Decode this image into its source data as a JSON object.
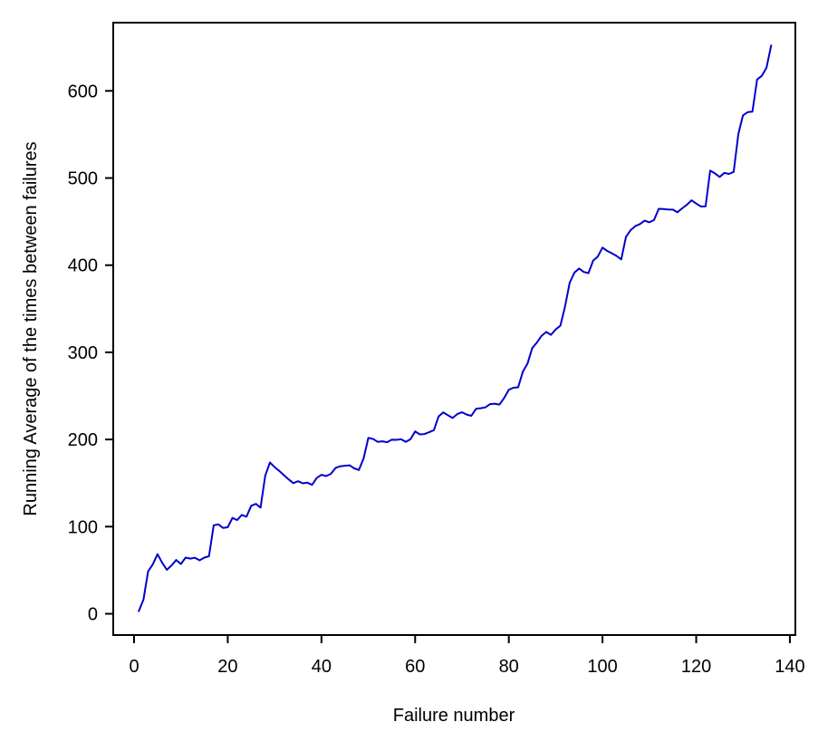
{
  "chart_data": {
    "type": "line",
    "title": "",
    "xlabel": "Failure number",
    "ylabel": "Running Average of the times between failures",
    "legend": null,
    "grid": false,
    "line_color": "#0000cd",
    "axis_color": "#000000",
    "x_ticks": [
      0,
      20,
      40,
      60,
      80,
      100,
      120,
      140
    ],
    "y_ticks": [
      0,
      100,
      200,
      300,
      400,
      500,
      600
    ],
    "xlim": [
      -4.45,
      141.17
    ],
    "ylim": [
      -24.4,
      678.3
    ],
    "series_name": "running-average-of-times-between-failures",
    "x": [
      1,
      2,
      3,
      4,
      5,
      6,
      7,
      8,
      9,
      10,
      11,
      12,
      13,
      14,
      15,
      16,
      17,
      18,
      19,
      20,
      21,
      22,
      23,
      24,
      25,
      26,
      27,
      28,
      29,
      30,
      31,
      32,
      33,
      34,
      35,
      36,
      37,
      38,
      39,
      40,
      41,
      42,
      43,
      44,
      45,
      46,
      47,
      48,
      49,
      50,
      51,
      52,
      53,
      54,
      55,
      56,
      57,
      58,
      59,
      60,
      61,
      62,
      63,
      64,
      65,
      66,
      67,
      68,
      69,
      70,
      71,
      72,
      73,
      74,
      75,
      76,
      77,
      78,
      79,
      80,
      81,
      82,
      83,
      84,
      85,
      86,
      87,
      88,
      89,
      90,
      91,
      92,
      93,
      94,
      95,
      96,
      97,
      98,
      99,
      100,
      101,
      102,
      103,
      104,
      105,
      106,
      107,
      108,
      109,
      110,
      111,
      112,
      113,
      114,
      115,
      116,
      117,
      118,
      119,
      120,
      121,
      122,
      123,
      124,
      125,
      126,
      127,
      128,
      129,
      130,
      131,
      132,
      133,
      134,
      135,
      136
    ],
    "values": [
      3.0,
      16.5,
      48.7,
      56.8,
      68.4,
      58.5,
      50.4,
      55.5,
      61.8,
      57.1,
      64.5,
      63.3,
      64.3,
      61.4,
      64.5,
      66.0,
      101.5,
      102.6,
      98.5,
      99.3,
      110.0,
      107.5,
      113.4,
      111.5,
      123.9,
      126.1,
      121.8,
      158.4,
      173.6,
      168.3,
      164.0,
      159.0,
      154.2,
      149.9,
      152.1,
      149.7,
      150.4,
      148.0,
      155.9,
      159.5,
      158.0,
      160.5,
      167.3,
      169.3,
      169.9,
      170.4,
      166.9,
      165.0,
      178.3,
      201.8,
      200.7,
      197.3,
      197.9,
      196.8,
      199.7,
      199.6,
      200.2,
      197.3,
      200.2,
      209.3,
      205.9,
      206.3,
      208.3,
      210.7,
      226.3,
      231.1,
      227.8,
      224.7,
      229.1,
      231.2,
      228.6,
      227.2,
      235.2,
      235.9,
      236.8,
      240.6,
      241.1,
      240.1,
      247.5,
      257.1,
      259.4,
      259.9,
      277.9,
      287.2,
      304.8,
      311.3,
      319.0,
      323.4,
      320.1,
      326.2,
      330.6,
      352.3,
      380.0,
      391.5,
      396.2,
      392.2,
      390.9,
      405.3,
      409.9,
      420.2,
      416.3,
      413.6,
      410.6,
      406.7,
      432.4,
      440.1,
      444.8,
      447.2,
      451.1,
      449.2,
      451.8,
      464.7,
      464.5,
      463.8,
      463.7,
      460.7,
      465.2,
      469.3,
      474.5,
      470.7,
      467.4,
      467.6,
      508.5,
      505.3,
      501.3,
      505.8,
      504.7,
      507.0,
      550.7,
      572.0,
      575.6,
      576.2,
      613.1,
      617.2,
      626.4,
      652.1
    ]
  }
}
